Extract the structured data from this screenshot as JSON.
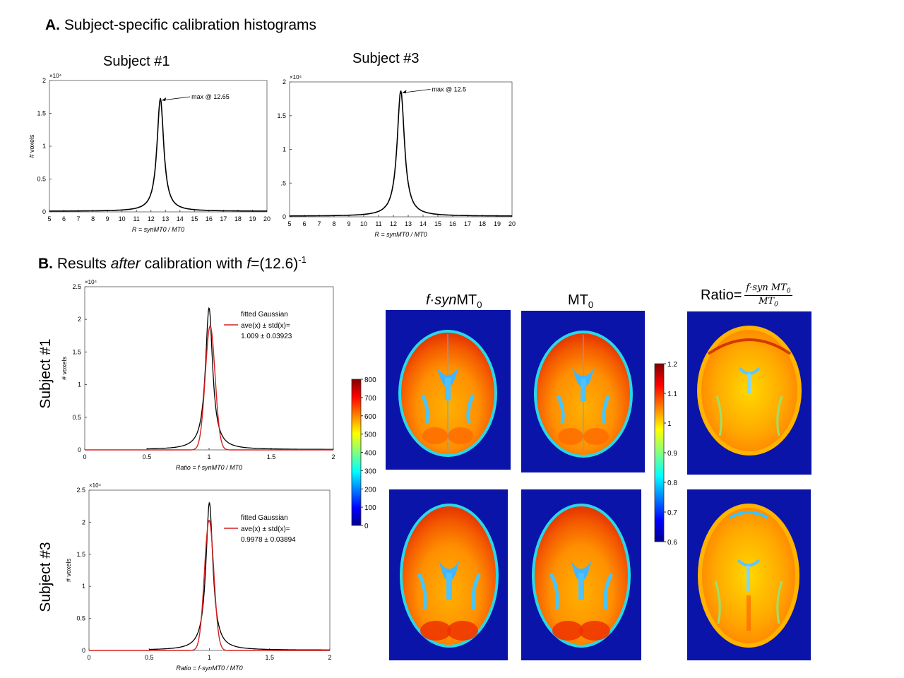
{
  "section_a": {
    "bold": "A.",
    "text": "Subject-specific calibration histograms"
  },
  "section_b": {
    "bold": "B.",
    "text1": "Results ",
    "text_italic": "after",
    "text2": " calibration with ",
    "f": "f",
    "text3": "=(12.6)",
    "sup": "-1"
  },
  "subjects": {
    "s1": "Subject #1",
    "s3": "Subject #3"
  },
  "columns": {
    "c1_f": "f·syn",
    "c1_rest": "MT",
    "c1_sub": "0",
    "c2": "MT",
    "c2_sub": "0",
    "c3_prefix": "Ratio=",
    "c3_num": "f·syn MT",
    "c3_num_sub": "0",
    "c3_den": "MT",
    "c3_den_sub": "0"
  },
  "colorbar_mt": {
    "ticks": [
      "800",
      "700",
      "600",
      "500",
      "400",
      "300",
      "200",
      "100",
      "0"
    ]
  },
  "colorbar_ratio": {
    "ticks": [
      "1.2",
      "1.1",
      "1",
      "0.9",
      "0.8",
      "0.7",
      "0.6"
    ]
  },
  "colors": {
    "hist_line": "#000000",
    "gauss_line": "#d62020",
    "map_bg": "#0a14a8"
  },
  "chart_data": [
    {
      "id": "calib_s1",
      "type": "line",
      "title": "Subject #1",
      "xlabel": "R = synMT0 / MT0",
      "ylabel": "# voxels",
      "y_exponent": "×10⁴",
      "xlim": [
        5,
        20
      ],
      "ylim": [
        0,
        2
      ],
      "xticks": [
        "5",
        "6",
        "7",
        "8",
        "9",
        "10",
        "11",
        "12",
        "13",
        "14",
        "15",
        "16",
        "17",
        "18",
        "19",
        "20"
      ],
      "yticks": [
        "0",
        "0.5",
        "1",
        "1.5",
        "2"
      ],
      "peak_x": 12.65,
      "peak_y": 1.72,
      "width": 0.28,
      "annotation": "max @ 12.65"
    },
    {
      "id": "calib_s3",
      "type": "line",
      "title": "Subject #3",
      "xlabel": "R = synMT0 / MT0",
      "ylabel": "",
      "y_exponent": "×10⁴",
      "xlim": [
        5,
        20
      ],
      "ylim": [
        0,
        2
      ],
      "xticks": [
        "5",
        "6",
        "7",
        "8",
        "9",
        "10",
        "11",
        "12",
        "13",
        "14",
        "15",
        "16",
        "17",
        "18",
        "19",
        "20"
      ],
      "yticks": [
        "0",
        ".5",
        "1",
        "1.5",
        "2"
      ],
      "peak_x": 12.5,
      "peak_y": 1.86,
      "width": 0.3,
      "annotation": "max @ 12.5"
    },
    {
      "id": "ratio_s1",
      "type": "line",
      "xlabel": "Ratio = f·synMT0 / MT0",
      "ylabel": "# voxels",
      "y_exponent": "×10⁴",
      "xlim": [
        0,
        2
      ],
      "ylim": [
        0,
        2.5
      ],
      "xticks": [
        "0",
        "0.5",
        "1",
        "1.5",
        "2"
      ],
      "yticks": [
        "0",
        "0.5",
        "1",
        "1.5",
        "2",
        "2.5"
      ],
      "hist_peak_x": 1.0,
      "hist_peak_y": 2.17,
      "hist_start": 0.5,
      "gauss_peak_y": 1.9,
      "mean": 1.009,
      "std": 0.03923,
      "legend": [
        "fitted Gaussian",
        "ave(x) ± std(x)=",
        "1.009 ± 0.03923"
      ]
    },
    {
      "id": "ratio_s3",
      "type": "line",
      "xlabel": "Ratio = f·synMT0 / MT0",
      "ylabel": "# voxels",
      "y_exponent": "×10⁴",
      "xlim": [
        0,
        2
      ],
      "ylim": [
        0,
        2.5
      ],
      "xticks": [
        "0",
        "0.5",
        "1",
        "1.5",
        "2"
      ],
      "yticks": [
        "0",
        "0.5",
        "1",
        "1.5",
        "2",
        "2.5"
      ],
      "hist_peak_x": 1.0,
      "hist_peak_y": 2.3,
      "hist_start": 0.5,
      "gauss_peak_y": 2.03,
      "mean": 0.9978,
      "std": 0.03894,
      "legend": [
        "fitted Gaussian",
        "ave(x) ± std(x)=",
        "0.9978 ± 0.03894"
      ]
    }
  ]
}
